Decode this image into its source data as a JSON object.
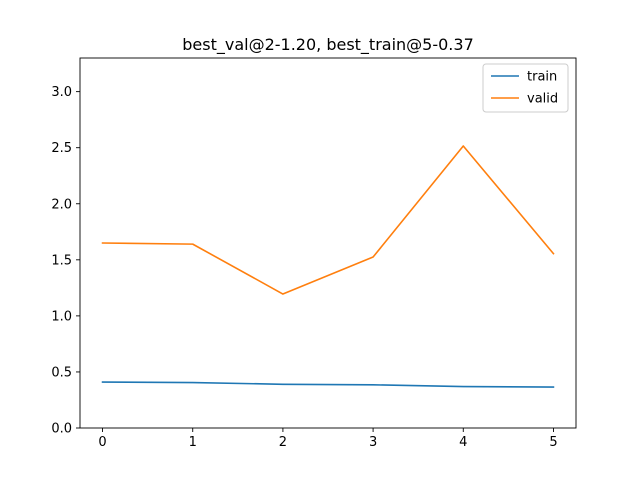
{
  "chart_data": {
    "type": "line",
    "title": "best_val@2-1.20, best_train@5-0.37",
    "xlabel": "",
    "ylabel": "",
    "x": [
      0,
      1,
      2,
      3,
      4,
      5
    ],
    "xlim": [
      -0.25,
      5.25
    ],
    "ylim": [
      0,
      3.3
    ],
    "xticks": [
      "0",
      "1",
      "2",
      "3",
      "4",
      "5"
    ],
    "yticks": [
      "0.0",
      "0.5",
      "1.0",
      "1.5",
      "2.0",
      "2.5",
      "3.0"
    ],
    "grid": false,
    "legend_position": "top-right",
    "series": [
      {
        "name": "train",
        "color": "#1f77b4",
        "values": [
          0.41,
          0.405,
          0.39,
          0.385,
          0.37,
          0.365
        ]
      },
      {
        "name": "valid",
        "color": "#ff7f0e",
        "values": [
          1.65,
          1.64,
          1.195,
          1.525,
          2.515,
          1.555
        ]
      }
    ]
  }
}
